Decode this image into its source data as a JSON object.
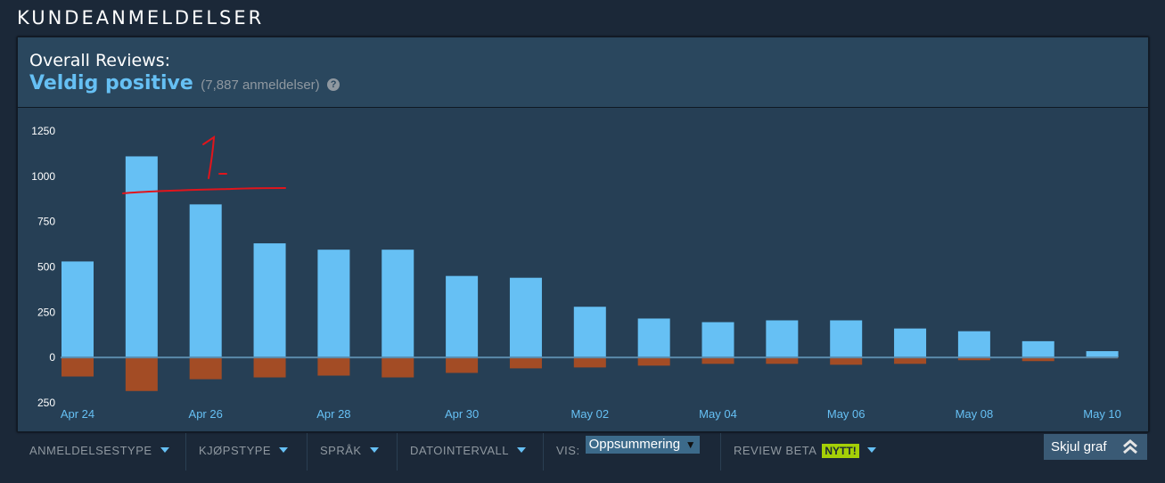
{
  "section_title": "KUNDEANMELDELSER",
  "summary": {
    "label": "Overall Reviews:",
    "rating": "Veldig positive",
    "count": "(7,887 anmeldelser)",
    "help_icon": "question-icon",
    "help_glyph": "?"
  },
  "colors": {
    "positive": "#66c0f4",
    "negative": "#a34c25",
    "baseline": "#5a8aaa",
    "annotation": "#e0151c"
  },
  "chart_data": {
    "type": "bar",
    "x_tick_labels": [
      "Apr 24",
      "Apr 26",
      "Apr 28",
      "Apr 30",
      "May 02",
      "May 04",
      "May 06",
      "May 08",
      "May 10"
    ],
    "categories": [
      "Apr 24",
      "Apr 25",
      "Apr 26",
      "Apr 27",
      "Apr 28",
      "Apr 29",
      "Apr 30",
      "May 01",
      "May 02",
      "May 03",
      "May 04",
      "May 05",
      "May 06",
      "May 07",
      "May 08",
      "May 09",
      "May 10"
    ],
    "series": [
      {
        "values": [
          530,
          1110,
          845,
          630,
          595,
          595,
          450,
          440,
          280,
          215,
          195,
          205,
          205,
          160,
          145,
          90,
          35
        ]
      },
      {
        "values": [
          -105,
          -185,
          -120,
          -110,
          -100,
          -110,
          -85,
          -60,
          -55,
          -45,
          -35,
          -35,
          -40,
          -35,
          -15,
          -20,
          -5
        ]
      }
    ],
    "y_ticks": [
      1250,
      1000,
      750,
      500,
      250,
      0,
      -250
    ],
    "y_tick_labels": [
      "1250",
      "1000",
      "750",
      "500",
      "250",
      "0",
      "250"
    ],
    "ylim": [
      -250,
      1250
    ],
    "grid": false
  },
  "annotation": {
    "icon": "hand-drawn-mark",
    "glyph": "1."
  },
  "filters": [
    {
      "label": "ANMELDELSESTYPE"
    },
    {
      "label": "KJØPSTYPE"
    },
    {
      "label": "SPRÅK"
    },
    {
      "label": "DATOINTERVALL"
    },
    {
      "label": "VIS:",
      "select_value": "Oppsummering",
      "select_arrow": "▼"
    },
    {
      "label": "REVIEW BETA",
      "badge": "NYTT!"
    }
  ],
  "hide_graph": {
    "label": "Skjul graf",
    "icon": "double-chevron-up-icon"
  }
}
